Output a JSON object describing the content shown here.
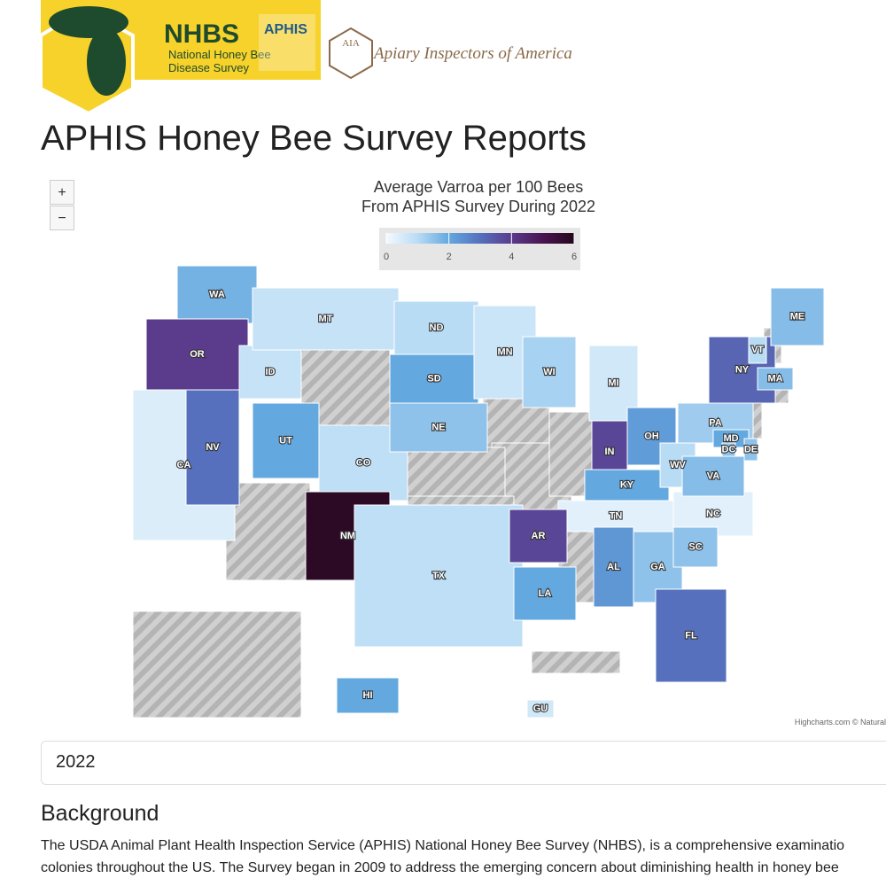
{
  "header": {
    "logo_title": "NHBS",
    "logo_subtitle_1": "National Honey Bee",
    "logo_subtitle_2": "Disease Survey",
    "logo_agency": "APHIS",
    "aia_mark": "AIA",
    "aia_name": "Apiary Inspectors of America"
  },
  "page_title": "APHIS Honey Bee Survey Reports",
  "zoom_in": "+",
  "zoom_out": "−",
  "chart_data": {
    "type": "map",
    "title": "Average Varroa per 100 Bees",
    "subtitle": "From APHIS Survey During 2022",
    "categories": [
      "WA",
      "OR",
      "CA",
      "NV",
      "ID",
      "MT",
      "UT",
      "CO",
      "NM",
      "ND",
      "SD",
      "NE",
      "TX",
      "MN",
      "WI",
      "MI",
      "IN",
      "OH",
      "KY",
      "TN",
      "NC",
      "AR",
      "LA",
      "AL",
      "GA",
      "SC",
      "FL",
      "WV",
      "VA",
      "PA",
      "NY",
      "VT",
      "ME",
      "MA",
      "MD",
      "DC",
      "DE",
      "HI",
      "GU"
    ],
    "values": [
      1.8,
      4.0,
      0.4,
      3.0,
      0.8,
      0.8,
      2.0,
      0.9,
      5.8,
      1.0,
      2.0,
      1.5,
      0.9,
      0.7,
      1.2,
      0.6,
      3.8,
      2.2,
      2.0,
      0.3,
      0.3,
      3.8,
      2.0,
      2.3,
      1.5,
      1.5,
      3.0,
      1.0,
      1.6,
      1.3,
      3.2,
      1.0,
      1.6,
      1.6,
      2.0,
      1.5,
      1.5,
      2.0,
      0.6
    ],
    "zlim": [
      0,
      6
    ],
    "zticks": [
      0,
      2,
      4,
      6
    ],
    "colors": [
      "#f4f9fe",
      "#b9dcf5",
      "#63a8df",
      "#5670bd",
      "#5a3b8c",
      "#4a1450",
      "#25071c"
    ],
    "credits": "Highcharts.com © Natural"
  },
  "year_select": "2022",
  "background": {
    "heading": "Background",
    "lines": [
      "The USDA Animal Plant Health Inspection Service (APHIS) National Honey Bee Survey (NHBS), is a comprehensive examinatio",
      "colonies throughout the US. The Survey began in 2009 to address the emerging concern about diminishing health in honey bee"
    ]
  }
}
